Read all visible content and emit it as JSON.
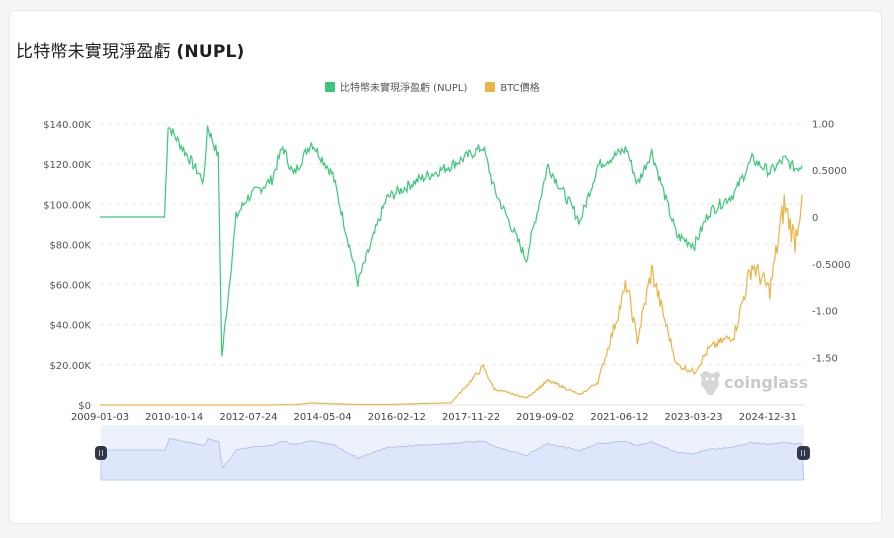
{
  "card": {
    "title": "比特幣未實現淨盈虧",
    "title_suffix": "(NUPL)"
  },
  "legend": [
    {
      "label": "比特幣未實現淨盈虧 (NUPL)",
      "color": "#3dc77a"
    },
    {
      "label": "BTC價格",
      "color": "#e9b448"
    }
  ],
  "watermark": {
    "text": "coinglass",
    "icon": "coinglass-logo-icon"
  },
  "colors": {
    "nupl": "#3dc77a",
    "price": "#e9b448",
    "grid": "#e8e8e8",
    "zoom_fill": "#dde6fb",
    "zoom_bg": "#edf1fc",
    "zoom_line": "#aebcea",
    "handle": "#333646"
  },
  "zoom_slider": {
    "left_handle_icon": "drag-handle-icon",
    "right_handle_icon": "drag-handle-icon"
  },
  "chart_data": {
    "type": "line",
    "title": "比特幣未實現淨盈虧 (NUPL)",
    "xlabel": "",
    "ylabel_left": "BTC價格",
    "ylabel_right": "NUPL",
    "x_tick_labels": [
      "2009-01-03",
      "2010-10-14",
      "2012-07-24",
      "2014-05-04",
      "2016-02-12",
      "2017-11-22",
      "2019-09-02",
      "2021-06-12",
      "2023-03-23",
      "2024-12-31"
    ],
    "y_left_tick_labels": [
      "$140.00K",
      "$120.00K",
      "$100.00K",
      "$80.00K",
      "$60.00K",
      "$40.00K",
      "$20.00K",
      "$0"
    ],
    "y_left_ticks": [
      140000,
      120000,
      100000,
      80000,
      60000,
      40000,
      20000,
      0
    ],
    "y_left_range": [
      0,
      140000
    ],
    "y_right_tick_labels": [
      "1.00",
      "0.5000",
      "0",
      "-0.5000",
      "-1.00",
      "-1.50"
    ],
    "y_right_ticks": [
      1.0,
      0.5,
      0,
      -0.5,
      -1.0,
      -1.5
    ],
    "y_right_range": [
      -2.0,
      1.0
    ],
    "grid": true,
    "legend_position": "top",
    "x": [
      "2009-01",
      "2010-07",
      "2010-08",
      "2011-06",
      "2011-07",
      "2011-10",
      "2011-11",
      "2012-03",
      "2012-06",
      "2013-01",
      "2013-04",
      "2013-07",
      "2013-12",
      "2014-06",
      "2015-01",
      "2015-09",
      "2016-06",
      "2017-03",
      "2017-12",
      "2018-03",
      "2018-12",
      "2019-06",
      "2019-09",
      "2020-03",
      "2020-08",
      "2021-04",
      "2021-07",
      "2021-11",
      "2022-06",
      "2022-11",
      "2023-03",
      "2023-10",
      "2024-03",
      "2024-08",
      "2024-12",
      "2025-03",
      "2025-05"
    ],
    "series": [
      {
        "name": "比特幣未實現淨盈虧 (NUPL)",
        "axis": "right",
        "values": [
          0,
          0,
          0.98,
          0.38,
          0.97,
          0.65,
          -1.5,
          0.0,
          0.2,
          0.4,
          0.75,
          0.45,
          0.8,
          0.45,
          -0.7,
          0.2,
          0.4,
          0.55,
          0.75,
          0.3,
          -0.45,
          0.55,
          0.35,
          -0.05,
          0.55,
          0.73,
          0.35,
          0.7,
          -0.2,
          -0.3,
          0.05,
          0.25,
          0.62,
          0.48,
          0.62,
          0.52,
          0.55
        ]
      },
      {
        "name": "BTC價格",
        "axis": "left",
        "values": [
          0,
          0,
          0,
          15,
          15,
          3,
          3,
          5,
          6,
          13,
          200,
          90,
          1000,
          600,
          250,
          230,
          650,
          1100,
          19000,
          8000,
          3500,
          12000,
          10000,
          5000,
          11500,
          60000,
          32000,
          67000,
          20000,
          16500,
          28000,
          35000,
          70000,
          57000,
          100000,
          82000,
          105000
        ]
      }
    ]
  }
}
